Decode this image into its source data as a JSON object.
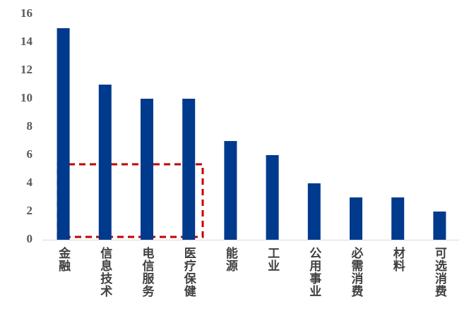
{
  "chart_data": {
    "type": "bar",
    "categories": [
      "金融",
      "信息技术",
      "电信服务",
      "医疗保健",
      "能源",
      "工业",
      "公用事业",
      "必需消费",
      "材料",
      "可选消费"
    ],
    "values": [
      15,
      11,
      10,
      10,
      7,
      6,
      4,
      3,
      3,
      2
    ],
    "color": "#003a8c",
    "ylim": [
      0,
      16
    ],
    "yticks": [
      0,
      2,
      4,
      6,
      8,
      10,
      12,
      14,
      16
    ],
    "grid": false
  }
}
